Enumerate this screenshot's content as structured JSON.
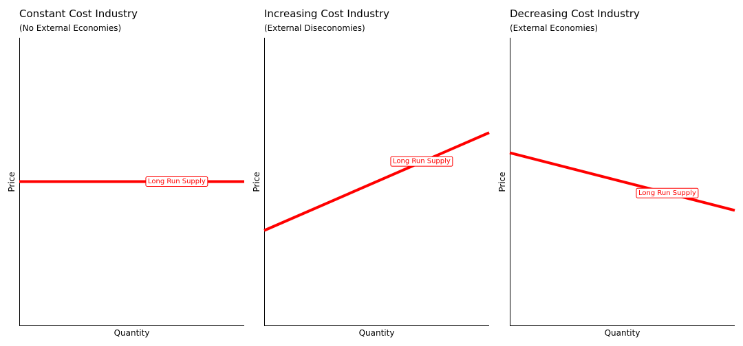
{
  "chart_data": [
    {
      "type": "line",
      "title": "Constant Cost Industry",
      "subtitle": "(No External Economies)",
      "xlabel": "Quantity",
      "ylabel": "Price",
      "xlim": [
        0,
        10
      ],
      "ylim": [
        0,
        10
      ],
      "grid": false,
      "ticks": false,
      "series": [
        {
          "name": "Long Run Supply",
          "color": "#ff0000",
          "x": [
            0,
            10
          ],
          "y": [
            5,
            5
          ],
          "label_at": [
            7,
            5
          ]
        }
      ]
    },
    {
      "type": "line",
      "title": "Increasing Cost Industry",
      "subtitle": "(External Diseconomies)",
      "xlabel": "Quantity",
      "ylabel": "Price",
      "xlim": [
        0,
        10
      ],
      "ylim": [
        0,
        10
      ],
      "grid": false,
      "ticks": false,
      "series": [
        {
          "name": "Long Run Supply",
          "color": "#ff0000",
          "x": [
            0,
            10
          ],
          "y": [
            3.3,
            6.7
          ],
          "label_at": [
            7,
            5.7
          ]
        }
      ]
    },
    {
      "type": "line",
      "title": "Decreasing Cost Industry",
      "subtitle": "(External Economies)",
      "xlabel": "Quantity",
      "ylabel": "Price",
      "xlim": [
        0,
        10
      ],
      "ylim": [
        0,
        10
      ],
      "grid": false,
      "ticks": false,
      "series": [
        {
          "name": "Long Run Supply",
          "color": "#ff0000",
          "x": [
            0,
            10
          ],
          "y": [
            6.0,
            4.0
          ],
          "label_at": [
            7,
            4.6
          ]
        }
      ]
    }
  ]
}
